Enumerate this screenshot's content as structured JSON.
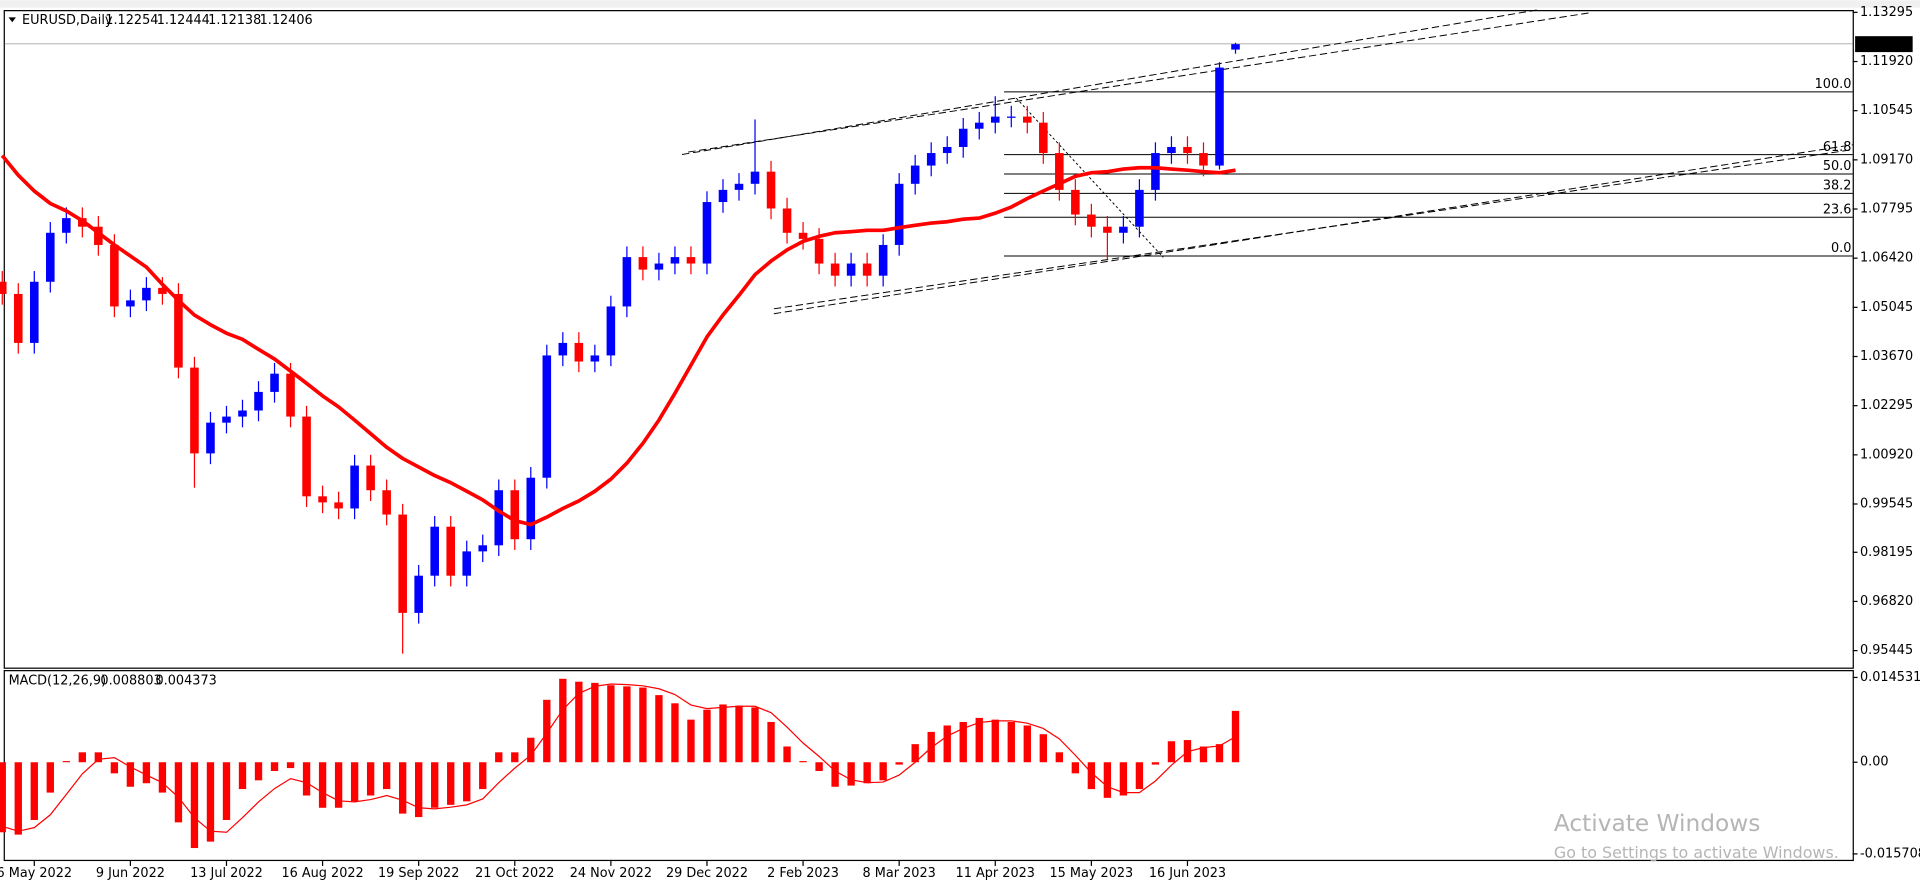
{
  "chart_data": [
    {
      "type": "candlestick",
      "title": "EURUSD,Daily",
      "categories": [
        null,
        null,
        "6 May 2022",
        null,
        null,
        null,
        null,
        null,
        "9 Jun 2022",
        null,
        null,
        null,
        null,
        null,
        "13 Jul 2022",
        null,
        null,
        null,
        null,
        null,
        "16 Aug 2022",
        null,
        null,
        null,
        null,
        null,
        "19 Sep 2022",
        null,
        null,
        null,
        null,
        null,
        "21 Oct 2022",
        null,
        null,
        null,
        null,
        null,
        "24 Nov 2022",
        null,
        null,
        null,
        null,
        null,
        "29 Dec 2022",
        null,
        null,
        null,
        null,
        null,
        "2 Feb 2023",
        null,
        null,
        null,
        null,
        null,
        "8 Mar 2023",
        null,
        null,
        null,
        null,
        null,
        "11 Apr 2023",
        null,
        null,
        null,
        null,
        null,
        "15 May 2023",
        null,
        null,
        null,
        null,
        null,
        "16 Jun 2023",
        null,
        null,
        null
      ],
      "open": [
        1.0576,
        1.0542,
        1.0405,
        1.0576,
        1.0713,
        1.0754,
        1.073,
        1.0679,
        1.0507,
        1.0524,
        1.0559,
        1.0542,
        1.0336,
        1.0096,
        1.0182,
        1.0199,
        1.0216,
        1.0268,
        1.0319,
        1.0199,
        0.9976,
        0.9959,
        0.9942,
        1.0062,
        0.9993,
        0.9925,
        0.965,
        0.9754,
        0.9891,
        0.9754,
        0.9822,
        0.9839,
        0.9993,
        0.9856,
        1.0028,
        1.037,
        1.0405,
        1.0353,
        1.037,
        1.0507,
        1.0645,
        1.061,
        1.0627,
        1.0645,
        1.0627,
        1.0799,
        1.0833,
        1.085,
        1.0884,
        1.0781,
        1.0713,
        1.0696,
        1.0627,
        1.0593,
        1.0627,
        1.0593,
        1.0679,
        1.085,
        1.0901,
        1.0936,
        1.0953,
        1.1004,
        1.1021,
        1.1038,
        1.1038,
        1.1021,
        1.0936,
        1.0833,
        1.0764,
        1.073,
        1.0713,
        1.073,
        1.0833,
        1.0936,
        1.0953,
        1.0936,
        1.0901,
        1.12254
      ],
      "high": [
        1.0606,
        1.0572,
        1.0606,
        1.0743,
        1.0784,
        1.0784,
        1.076,
        1.0709,
        1.0554,
        1.0589,
        1.0589,
        1.0572,
        1.0366,
        1.0212,
        1.0229,
        1.0246,
        1.0298,
        1.0349,
        1.0349,
        1.0229,
        1.0006,
        0.9989,
        1.0092,
        1.0092,
        1.0023,
        0.9955,
        0.9784,
        0.9921,
        0.9921,
        0.9852,
        0.9869,
        1.0023,
        1.0023,
        1.0058,
        1.04,
        1.0435,
        1.0435,
        1.04,
        1.0537,
        1.0675,
        1.0675,
        1.0657,
        1.0675,
        1.0675,
        1.0829,
        1.0863,
        1.088,
        1.103,
        1.0914,
        1.0811,
        1.0743,
        1.0726,
        1.0657,
        1.0657,
        1.0657,
        1.0709,
        1.088,
        1.0931,
        1.0966,
        1.0983,
        1.1034,
        1.1051,
        1.1095,
        1.1068,
        1.1068,
        1.1051,
        1.0966,
        1.0863,
        1.0794,
        1.076,
        1.076,
        1.0863,
        1.0966,
        1.0983,
        1.0983,
        1.0966,
        1.119,
        1.12444
      ],
      "low": [
        1.0512,
        1.0375,
        1.0375,
        1.0546,
        1.0683,
        1.07,
        1.0649,
        1.0477,
        1.0477,
        1.0494,
        1.0512,
        1.0306,
        1.0,
        1.0066,
        1.0152,
        1.0169,
        1.0186,
        1.0238,
        1.0169,
        0.9946,
        0.9929,
        0.9912,
        0.9912,
        0.9963,
        0.9895,
        0.9536,
        0.962,
        0.9724,
        0.9724,
        0.9724,
        0.9792,
        0.9809,
        0.9826,
        0.9826,
        0.9998,
        1.034,
        1.0323,
        1.0323,
        1.034,
        1.0477,
        1.058,
        1.058,
        1.0597,
        1.0597,
        1.0597,
        1.0769,
        1.0803,
        1.082,
        1.0751,
        1.0683,
        1.0666,
        1.0597,
        1.0563,
        1.0563,
        1.0563,
        1.0563,
        1.0649,
        1.082,
        1.0871,
        1.0906,
        1.0923,
        1.0974,
        1.0991,
        1.1008,
        1.0991,
        1.0906,
        1.0803,
        1.0734,
        1.07,
        1.064,
        1.0683,
        1.07,
        1.0803,
        1.0906,
        1.0906,
        1.0871,
        1.089,
        1.12138
      ],
      "close": [
        1.0542,
        1.0405,
        1.0576,
        1.0713,
        1.0754,
        1.073,
        1.0679,
        1.0507,
        1.0524,
        1.0559,
        1.0542,
        1.0336,
        1.0096,
        1.0182,
        1.0199,
        1.0216,
        1.0268,
        1.0319,
        1.0199,
        0.9976,
        0.9959,
        0.9942,
        1.0062,
        0.9993,
        0.9925,
        0.965,
        0.9754,
        0.9891,
        0.9754,
        0.9822,
        0.9839,
        0.9993,
        0.9856,
        1.0028,
        1.037,
        1.0405,
        1.0353,
        1.037,
        1.0507,
        1.0645,
        1.061,
        1.0627,
        1.0645,
        1.0627,
        1.0799,
        1.0833,
        1.085,
        1.0884,
        1.0781,
        1.0713,
        1.0696,
        1.0627,
        1.0593,
        1.0627,
        1.0593,
        1.0679,
        1.085,
        1.0901,
        1.0936,
        1.0953,
        1.1004,
        1.1021,
        1.1038,
        1.1038,
        1.1021,
        1.0936,
        1.0833,
        1.0764,
        1.073,
        1.0713,
        1.073,
        1.0833,
        1.0936,
        1.0953,
        1.0936,
        1.0901,
        1.1175,
        1.12406
      ],
      "up_color": "#0000ff",
      "down_color": "#ff0000",
      "moving_average": {
        "color": "#ff0000",
        "values": [
          1.0929,
          1.0874,
          1.083,
          1.0795,
          1.0774,
          1.0747,
          1.0713,
          1.0679,
          1.0648,
          1.0617,
          1.0569,
          1.0524,
          1.0483,
          1.0456,
          1.0432,
          1.0415,
          1.0387,
          1.036,
          1.0326,
          1.0292,
          1.0257,
          1.0226,
          1.0189,
          1.0151,
          1.0113,
          1.0082,
          1.0058,
          1.0034,
          1.0014,
          0.999,
          0.9966,
          0.9935,
          0.9908,
          0.9897,
          0.9918,
          0.9942,
          0.9963,
          0.999,
          1.0024,
          1.0069,
          1.0124,
          1.0189,
          1.0264,
          1.0343,
          1.0422,
          1.0483,
          1.0538,
          1.0596,
          1.0634,
          1.0665,
          1.0689,
          1.0703,
          1.0713,
          1.0716,
          1.072,
          1.072,
          1.0727,
          1.0734,
          1.074,
          1.0744,
          1.0751,
          1.0754,
          1.0768,
          1.0785,
          1.0809,
          1.083,
          1.085,
          1.0871,
          1.0881,
          1.0884,
          1.0891,
          1.0895,
          1.0895,
          1.0891,
          1.0888,
          1.0884,
          1.0881,
          1.0888
        ]
      },
      "fibonacci": {
        "color": "#000000",
        "high": 1.1107,
        "low": 1.0648,
        "levels": [
          100,
          61.8,
          50,
          38.2,
          23.6,
          0
        ],
        "level_labels": [
          "100.0",
          "61.8",
          "50.0",
          "38.2",
          "23.6",
          "0.0"
        ]
      },
      "ylim": [
        0.9497,
        1.1336
      ],
      "yticks": [
        1.13295,
        {
          "value": 1.1192,
          "label": "1.11920"
        },
        1.10545,
        {
          "value": 1.0917,
          "label": "1.09170"
        },
        1.07795,
        {
          "value": 1.0642,
          "label": "1.06420"
        },
        1.05045,
        {
          "value": 1.0367,
          "label": "1.03670"
        },
        1.02295,
        {
          "value": 1.0092,
          "label": "1.00920"
        },
        0.99545,
        0.98195,
        {
          "value": 0.9682,
          "label": "0.96820"
        },
        0.95445
      ]
    },
    {
      "type": "macd",
      "title": "MACD(12,26,9)",
      "color": "#ff0000",
      "values": [
        -0.012,
        -0.0124,
        -0.0099,
        -0.0052,
        0.0002,
        0.0017,
        0.0017,
        -0.0019,
        -0.0042,
        -0.0036,
        -0.0052,
        -0.0103,
        -0.0147,
        -0.0136,
        -0.0099,
        -0.0046,
        -0.0031,
        -0.0015,
        -0.001,
        -0.0057,
        -0.0078,
        -0.0078,
        -0.0067,
        -0.0057,
        -0.0046,
        -0.0088,
        -0.0094,
        -0.0078,
        -0.0073,
        -0.0067,
        -0.0046,
        0.0017,
        0.0017,
        0.0042,
        0.0107,
        0.0143,
        0.0138,
        0.0136,
        0.0132,
        0.013,
        0.0128,
        0.0115,
        0.0101,
        0.0073,
        0.009,
        0.0099,
        0.0097,
        0.0094,
        0.0069,
        0.0027,
        0.0002,
        -0.0015,
        -0.0042,
        -0.004,
        -0.0036,
        -0.0031,
        -0.0004,
        0.0031,
        0.0052,
        0.0063,
        0.0069,
        0.0076,
        0.0073,
        0.0069,
        0.0063,
        0.0048,
        0.0017,
        -0.0019,
        -0.0046,
        -0.0061,
        -0.0057,
        -0.0046,
        -0.0004,
        0.0036,
        0.0038,
        0.0027,
        0.0031,
        0.008803
      ],
      "signal": [
        -0.011,
        -0.0118,
        -0.0112,
        -0.009,
        -0.0055,
        -0.002,
        0.0005,
        0.0008,
        -0.0008,
        -0.0022,
        -0.0035,
        -0.006,
        -0.0095,
        -0.0118,
        -0.012,
        -0.0095,
        -0.0068,
        -0.0045,
        -0.0028,
        -0.0035,
        -0.0052,
        -0.0066,
        -0.0068,
        -0.0064,
        -0.0057,
        -0.0065,
        -0.0078,
        -0.008,
        -0.0077,
        -0.0073,
        -0.0063,
        -0.0035,
        -0.001,
        0.0012,
        0.005,
        0.009,
        0.0118,
        0.013,
        0.0134,
        0.0133,
        0.0131,
        0.0126,
        0.0116,
        0.0098,
        0.0092,
        0.0094,
        0.0096,
        0.0096,
        0.0085,
        0.006,
        0.0033,
        0.001,
        -0.0015,
        -0.003,
        -0.0035,
        -0.0034,
        -0.0022,
        0.0,
        0.0025,
        0.0045,
        0.0058,
        0.0068,
        0.0071,
        0.0071,
        0.0067,
        0.0058,
        0.004,
        0.0012,
        -0.0018,
        -0.0042,
        -0.0052,
        -0.0052,
        -0.0032,
        -0.0005,
        0.0018,
        0.0025,
        0.0028,
        0.004373
      ],
      "ylim": [
        -0.0163,
        0.0158
      ],
      "yticks": [
        0.014531,
        {
          "value": 0,
          "label": "0.00"
        },
        -0.015708
      ]
    }
  ],
  "watermark": {
    "title": "Activate Windows",
    "subtitle": "Go to Settings to activate Windows."
  }
}
